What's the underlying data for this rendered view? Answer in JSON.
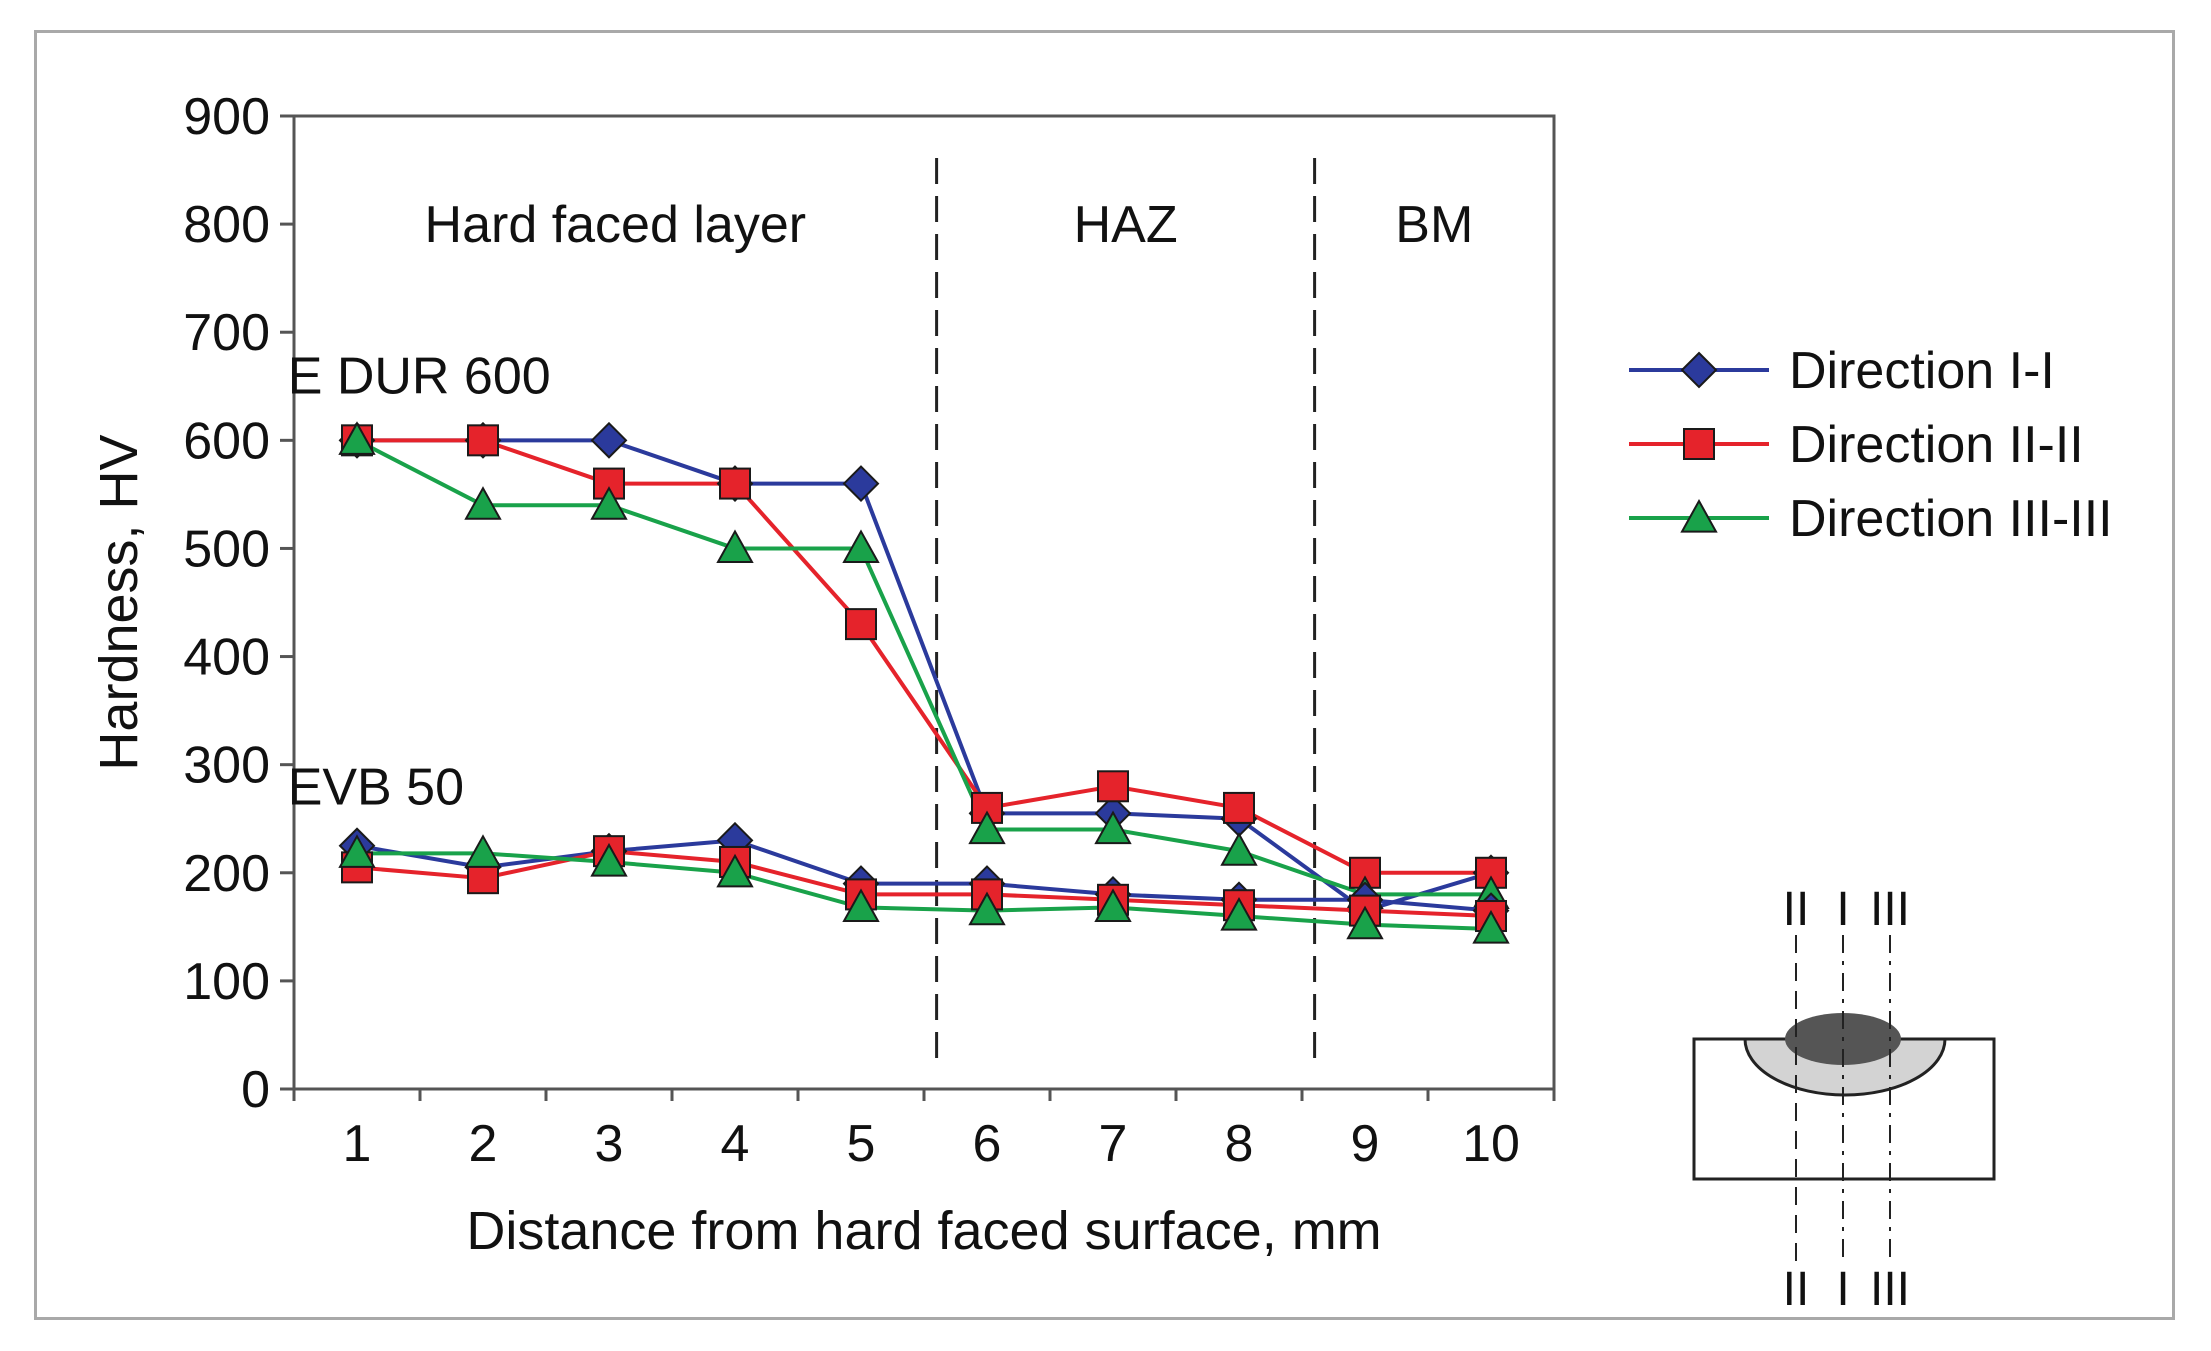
{
  "chart_data": {
    "type": "line",
    "title": "",
    "xlabel": "Distance from hard faced surface, mm",
    "ylabel": "Hardness, HV",
    "x": [
      1,
      2,
      3,
      4,
      5,
      6,
      7,
      8,
      9,
      10
    ],
    "x_tick_labels": [
      "1",
      "2",
      "3",
      "4",
      "5",
      "6",
      "7",
      "8",
      "9",
      "10"
    ],
    "xlim": [
      0.5,
      10.5
    ],
    "ylim": [
      0,
      900
    ],
    "y_ticks": [
      0,
      100,
      200,
      300,
      400,
      500,
      600,
      700,
      800,
      900
    ],
    "grid": false,
    "legend_position": "right",
    "legend": [
      {
        "name": "Direction I-I",
        "color": "#2b3a9c",
        "marker": "diamond"
      },
      {
        "name": "Direction II-II",
        "color": "#e5232b",
        "marker": "square"
      },
      {
        "name": "Direction III-III",
        "color": "#19a24a",
        "marker": "triangle"
      }
    ],
    "regions": [
      {
        "label": "Hard faced layer",
        "from": 0.5,
        "to": 5.6
      },
      {
        "label": "HAZ",
        "from": 5.6,
        "to": 8.6
      },
      {
        "label": "BM",
        "from": 8.6,
        "to": 10.5
      }
    ],
    "region_boundaries": [
      5.6,
      8.6
    ],
    "groups": [
      {
        "label": "E DUR 600",
        "label_anchor": {
          "x": 0.45,
          "y": 660
        },
        "series": [
          {
            "name": "Direction I-I",
            "values": [
              600,
              600,
              600,
              560,
              560,
              255,
              255,
              250,
              165,
              200
            ]
          },
          {
            "name": "Direction II-II",
            "values": [
              600,
              600,
              560,
              560,
              430,
              260,
              280,
              260,
              200,
              200
            ]
          },
          {
            "name": "Direction III-III",
            "values": [
              600,
              540,
              540,
              500,
              500,
              240,
              240,
              220,
              180,
              180
            ]
          }
        ]
      },
      {
        "label": "EVB 50",
        "label_anchor": {
          "x": 0.45,
          "y": 280
        },
        "series": [
          {
            "name": "Direction I-I",
            "values": [
              225,
              205,
              220,
              230,
              190,
              190,
              180,
              175,
              175,
              165
            ]
          },
          {
            "name": "Direction II-II",
            "values": [
              205,
              195,
              220,
              210,
              180,
              180,
              175,
              170,
              165,
              160
            ]
          },
          {
            "name": "Direction III-III",
            "values": [
              218,
              218,
              210,
              200,
              168,
              165,
              168,
              160,
              152,
              148
            ]
          }
        ]
      }
    ]
  },
  "inset": {
    "top_labels": [
      "II",
      "I",
      "III"
    ],
    "bottom_labels": [
      "II",
      "I",
      "III"
    ],
    "colors": {
      "weld": "#555555",
      "haz": "#d3d3d3",
      "outline": "#222222"
    }
  }
}
